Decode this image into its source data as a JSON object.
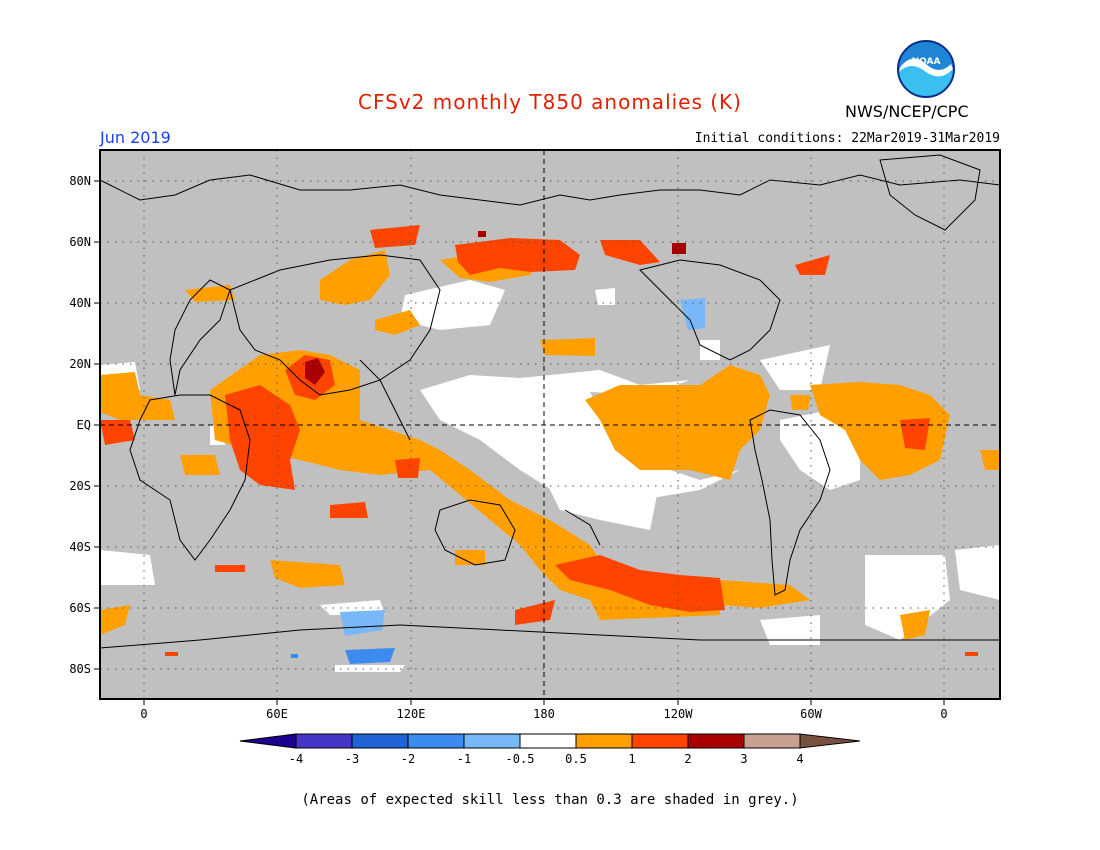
{
  "title": "CFSv2 monthly T850 anomalies (K)",
  "month": "Jun 2019",
  "initial_conditions": "Initial conditions: 22Mar2019-31Mar2019",
  "agency": "NWS/NCEP/CPC",
  "logo_text": "NOAA",
  "colors": {
    "title": "#e02000",
    "month": "#1a40ff",
    "skill_grey": "#c0c0c0"
  },
  "axes": {
    "lat_labels": [
      "80N",
      "60N",
      "40N",
      "20N",
      "EQ",
      "20S",
      "40S",
      "60S",
      "80S"
    ],
    "lon_labels": [
      "0",
      "60E",
      "120E",
      "180",
      "120W",
      "60W",
      "0"
    ]
  },
  "colorbar": {
    "colors": [
      "#1e0090",
      "#4534c8",
      "#2064d8",
      "#3c8cf0",
      "#78b8f8",
      "#ffffff",
      "#ffa000",
      "#ff4400",
      "#a80000",
      "#c8a090",
      "#785040"
    ],
    "labels": [
      "-4",
      "-3",
      "-2",
      "-1",
      "-0.5",
      "0.5",
      "1",
      "2",
      "3",
      "4"
    ]
  },
  "footnote": "(Areas of expected skill less than 0.3 are shaded in grey.)"
}
